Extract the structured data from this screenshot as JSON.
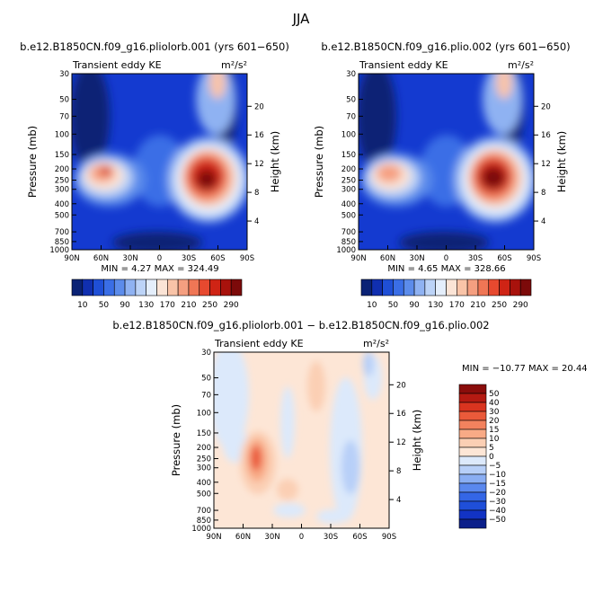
{
  "page_title": "JJA",
  "colors": {
    "ke": [
      "#0a2275",
      "#102fb0",
      "#1f4fd6",
      "#3a6ee6",
      "#5c8ceb",
      "#8fb2f2",
      "#bcd3f7",
      "#e4eefb",
      "#fbe4d6",
      "#f9c4a8",
      "#f59f80",
      "#ef7655",
      "#e7492f",
      "#cf2415",
      "#a8120c",
      "#7c0a0a"
    ],
    "diff": [
      "#0b1f8a",
      "#1233c4",
      "#1f4fd9",
      "#3466e6",
      "#5a88ee",
      "#8aaef3",
      "#b7cff8",
      "#dce9fb",
      "#fde6d6",
      "#fbcfb4",
      "#f8aa86",
      "#f3825e",
      "#ea5a3a",
      "#d9341f",
      "#b41a12",
      "#8a0d0b"
    ],
    "panel_bg_diff": "#fde6d6"
  },
  "panels": {
    "left": {
      "title": "b.e12.B1850CN.f09_g16.pliolorb.001 (yrs 601−650)",
      "subtitle": "Transient eddy KE",
      "units": "m²/s²",
      "min_max": "MIN =    4.27   MAX =  324.49"
    },
    "right": {
      "title": "b.e12.B1850CN.f09_g16.plio.002 (yrs 601−650)",
      "subtitle": "Transient eddy KE",
      "units": "m²/s²",
      "min_max": "MIN =    4.65   MAX =  328.66"
    },
    "diff": {
      "title": "b.e12.B1850CN.f09_g16.pliolorb.001 − b.e12.B1850CN.f09_g16.plio.002",
      "subtitle": "Transient eddy KE",
      "units": "m²/s²",
      "min_max": "MIN = −10.77   MAX =  20.44"
    }
  },
  "axes": {
    "ylabel": "Pressure (mb)",
    "ylabel_right": "Height (km)"
  },
  "chart_data": [
    {
      "type": "heatmap",
      "title": "b.e12.B1850CN.f09_g16.pliolorb.001 (yrs 601−650)",
      "subtitle": "Transient eddy KE",
      "units": "m²/s²",
      "x_ticks": [
        "90N",
        "60N",
        "30N",
        "0",
        "30S",
        "60S",
        "90S"
      ],
      "x_values": [
        90,
        60,
        30,
        0,
        -30,
        -60,
        -90
      ],
      "y_ticks": [
        "30",
        "50",
        "70",
        "100",
        "150",
        "200",
        "250",
        "300",
        "400",
        "500",
        "700",
        "850",
        "1000"
      ],
      "y_values": [
        30,
        50,
        70,
        100,
        150,
        200,
        250,
        300,
        400,
        500,
        700,
        850,
        1000
      ],
      "y_scale": "log",
      "ylim": [
        1000,
        30
      ],
      "y2_ticks": [
        "4",
        "8",
        "12",
        "16",
        "20"
      ],
      "ylabel": "Pressure (mb)",
      "y2label": "Height (km)",
      "colorbar_levels": [
        10,
        30,
        50,
        70,
        90,
        110,
        130,
        150,
        170,
        190,
        210,
        230,
        250,
        270,
        290
      ],
      "colorbar_labels": [
        "10",
        "50",
        "90",
        "130",
        "170",
        "210",
        "250",
        "290"
      ],
      "min": 4.27,
      "max": 324.49,
      "features": [
        {
          "lat": 45,
          "p": 220,
          "value": 200
        },
        {
          "lat": -45,
          "p": 260,
          "value": 324
        }
      ]
    },
    {
      "type": "heatmap",
      "title": "b.e12.B1850CN.f09_g16.plio.002 (yrs 601−650)",
      "subtitle": "Transient eddy KE",
      "units": "m²/s²",
      "x_ticks": [
        "90N",
        "60N",
        "30N",
        "0",
        "30S",
        "60S",
        "90S"
      ],
      "y_ticks": [
        "30",
        "50",
        "70",
        "100",
        "150",
        "200",
        "250",
        "300",
        "400",
        "500",
        "700",
        "850",
        "1000"
      ],
      "y2_ticks": [
        "4",
        "8",
        "12",
        "16",
        "20"
      ],
      "ylabel": "Pressure (mb)",
      "y2label": "Height (km)",
      "colorbar_levels": [
        10,
        30,
        50,
        70,
        90,
        110,
        130,
        150,
        170,
        190,
        210,
        230,
        250,
        270,
        290
      ],
      "colorbar_labels": [
        "10",
        "50",
        "90",
        "130",
        "170",
        "210",
        "250",
        "290"
      ],
      "min": 4.65,
      "max": 328.66,
      "features": [
        {
          "lat": 45,
          "p": 220,
          "value": 190
        },
        {
          "lat": -45,
          "p": 260,
          "value": 328
        }
      ]
    },
    {
      "type": "heatmap",
      "title": "b.e12.B1850CN.f09_g16.pliolorb.001 − b.e12.B1850CN.f09_g16.plio.002",
      "subtitle": "Transient eddy KE",
      "units": "m²/s²",
      "x_ticks": [
        "90N",
        "60N",
        "30N",
        "0",
        "30S",
        "60S",
        "90S"
      ],
      "y_ticks": [
        "30",
        "50",
        "70",
        "100",
        "150",
        "200",
        "250",
        "300",
        "400",
        "500",
        "700",
        "850",
        "1000"
      ],
      "y2_ticks": [
        "4",
        "8",
        "12",
        "16",
        "20"
      ],
      "ylabel": "Pressure (mb)",
      "y2label": "Height (km)",
      "colorbar_levels": [
        -50,
        -40,
        -30,
        -20,
        -15,
        -10,
        -5,
        0,
        5,
        10,
        15,
        20,
        30,
        40,
        50
      ],
      "colorbar_labels": [
        "50",
        "40",
        "30",
        "20",
        "15",
        "10",
        "5",
        "0",
        "−5",
        "−10",
        "−15",
        "−20",
        "−30",
        "−40",
        "−50"
      ],
      "min": -10.77,
      "max": 20.44,
      "features": [
        {
          "lat": 45,
          "p": 250,
          "value": 20.4
        },
        {
          "lat": -30,
          "p": 300,
          "value": -8
        }
      ]
    }
  ]
}
